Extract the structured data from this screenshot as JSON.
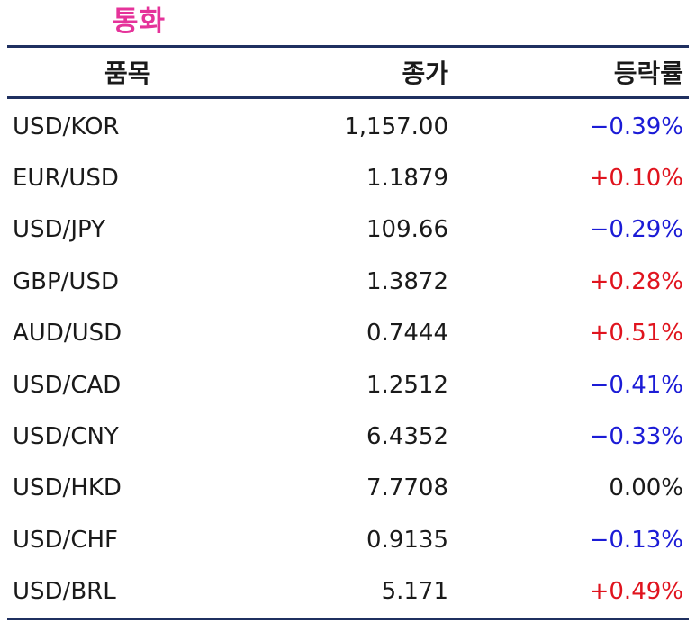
{
  "title": "통화",
  "headers": {
    "name": "품목",
    "price": "종가",
    "change": "등락률"
  },
  "colors": {
    "title": "#e5339a",
    "up": "#e0141e",
    "down": "#1c1cd6",
    "border": "#1f3060"
  },
  "rows": [
    {
      "name": "USD/KOR",
      "price": "1,157.00",
      "change": "−0.39%",
      "dir": "down"
    },
    {
      "name": "EUR/USD",
      "price": "1.1879",
      "change": "+0.10%",
      "dir": "up"
    },
    {
      "name": "USD/JPY",
      "price": "109.66",
      "change": "−0.29%",
      "dir": "down"
    },
    {
      "name": "GBP/USD",
      "price": "1.3872",
      "change": "+0.28%",
      "dir": "up"
    },
    {
      "name": "AUD/USD",
      "price": "0.7444",
      "change": "+0.51%",
      "dir": "up"
    },
    {
      "name": "USD/CAD",
      "price": "1.2512",
      "change": "−0.41%",
      "dir": "down"
    },
    {
      "name": "USD/CNY",
      "price": "6.4352",
      "change": "−0.33%",
      "dir": "down"
    },
    {
      "name": "USD/HKD",
      "price": "7.7708",
      "change": "0.00%",
      "dir": "flat"
    },
    {
      "name": "USD/CHF",
      "price": "0.9135",
      "change": "−0.13%",
      "dir": "down"
    },
    {
      "name": "USD/BRL",
      "price": "5.171",
      "change": "+0.49%",
      "dir": "up"
    }
  ]
}
